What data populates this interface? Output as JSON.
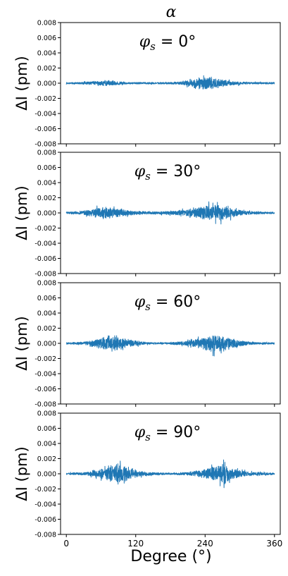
{
  "figure": {
    "suptitle": "α"
  },
  "colors": {
    "series": "#1f77b4",
    "axes": "#000000"
  },
  "chart_data": [
    {
      "type": "line",
      "title_symbol": "φ",
      "title_subscript": "s",
      "title_rest": " = 0°",
      "ylabel": "ΔI (pm)",
      "xlabel": "",
      "xlim": [
        -10,
        370
      ],
      "ylim": [
        -0.008,
        0.008
      ],
      "y_ticks": [
        "0.008",
        "0.006",
        "0.004",
        "0.002",
        "0.000",
        "-0.002",
        "-0.004",
        "-0.006",
        "-0.008"
      ],
      "x_ticks": [
        "0",
        "120",
        "240",
        "360"
      ],
      "show_x_tick_labels": false,
      "envelope": {
        "x": [
          0,
          30,
          45,
          70,
          85,
          110,
          140,
          180,
          200,
          220,
          240,
          250,
          260,
          290,
          320,
          360
        ],
        "amp": [
          0.0002,
          0.00025,
          0.0004,
          0.0006,
          0.0004,
          0.0002,
          0.0002,
          0.0002,
          0.0004,
          0.0008,
          0.0014,
          0.0014,
          0.0009,
          0.0004,
          0.0002,
          0.0002
        ]
      }
    },
    {
      "type": "line",
      "title_symbol": "φ",
      "title_subscript": "s",
      "title_rest": " = 30°",
      "ylabel": "ΔI (pm)",
      "xlabel": "",
      "xlim": [
        -10,
        370
      ],
      "ylim": [
        -0.008,
        0.008
      ],
      "y_ticks": [
        "0.008",
        "0.006",
        "0.004",
        "0.002",
        "0.000",
        "-0.002",
        "-0.004",
        "-0.006",
        "-0.008"
      ],
      "x_ticks": [
        "0",
        "120",
        "240",
        "360"
      ],
      "show_x_tick_labels": false,
      "envelope": {
        "x": [
          0,
          20,
          40,
          55,
          70,
          90,
          110,
          140,
          170,
          190,
          210,
          235,
          250,
          265,
          290,
          320,
          360
        ],
        "amp": [
          0.0002,
          0.0003,
          0.0006,
          0.0011,
          0.0012,
          0.0009,
          0.0005,
          0.0003,
          0.0003,
          0.0005,
          0.0008,
          0.0013,
          0.0019,
          0.0017,
          0.0008,
          0.0003,
          0.0002
        ]
      }
    },
    {
      "type": "line",
      "title_symbol": "φ",
      "title_subscript": "s",
      "title_rest": " = 60°",
      "ylabel": "ΔI (pm)",
      "xlabel": "",
      "xlim": [
        -10,
        370
      ],
      "ylim": [
        -0.008,
        0.008
      ],
      "y_ticks": [
        "0.008",
        "0.006",
        "0.004",
        "0.002",
        "0.000",
        "-0.002",
        "-0.004",
        "-0.006",
        "-0.008"
      ],
      "x_ticks": [
        "0",
        "120",
        "240",
        "360"
      ],
      "show_x_tick_labels": false,
      "envelope": {
        "x": [
          0,
          30,
          50,
          70,
          80,
          95,
          115,
          140,
          175,
          200,
          220,
          245,
          260,
          275,
          300,
          330,
          360
        ],
        "amp": [
          0.0002,
          0.0003,
          0.0008,
          0.0015,
          0.0018,
          0.0013,
          0.0006,
          0.0002,
          0.0002,
          0.0004,
          0.0008,
          0.0015,
          0.002,
          0.0014,
          0.0006,
          0.0002,
          0.0002
        ]
      }
    },
    {
      "type": "line",
      "title_symbol": "φ",
      "title_subscript": "s",
      "title_rest": " = 90°",
      "ylabel": "ΔI (pm)",
      "xlabel": "Degree (°)",
      "xlim": [
        -10,
        370
      ],
      "ylim": [
        -0.008,
        0.008
      ],
      "y_ticks": [
        "0.008",
        "0.006",
        "0.004",
        "0.002",
        "0.000",
        "-0.002",
        "-0.004",
        "-0.006",
        "-0.008"
      ],
      "x_ticks": [
        "0",
        "120",
        "240",
        "360"
      ],
      "show_x_tick_labels": true,
      "envelope": {
        "x": [
          0,
          30,
          55,
          75,
          90,
          105,
          125,
          150,
          180,
          210,
          235,
          255,
          270,
          285,
          310,
          335,
          360
        ],
        "amp": [
          0.0002,
          0.0003,
          0.0008,
          0.0016,
          0.0022,
          0.0015,
          0.0006,
          0.0003,
          0.0002,
          0.0003,
          0.0008,
          0.0016,
          0.0022,
          0.0012,
          0.0005,
          0.0003,
          0.0002
        ]
      }
    }
  ]
}
